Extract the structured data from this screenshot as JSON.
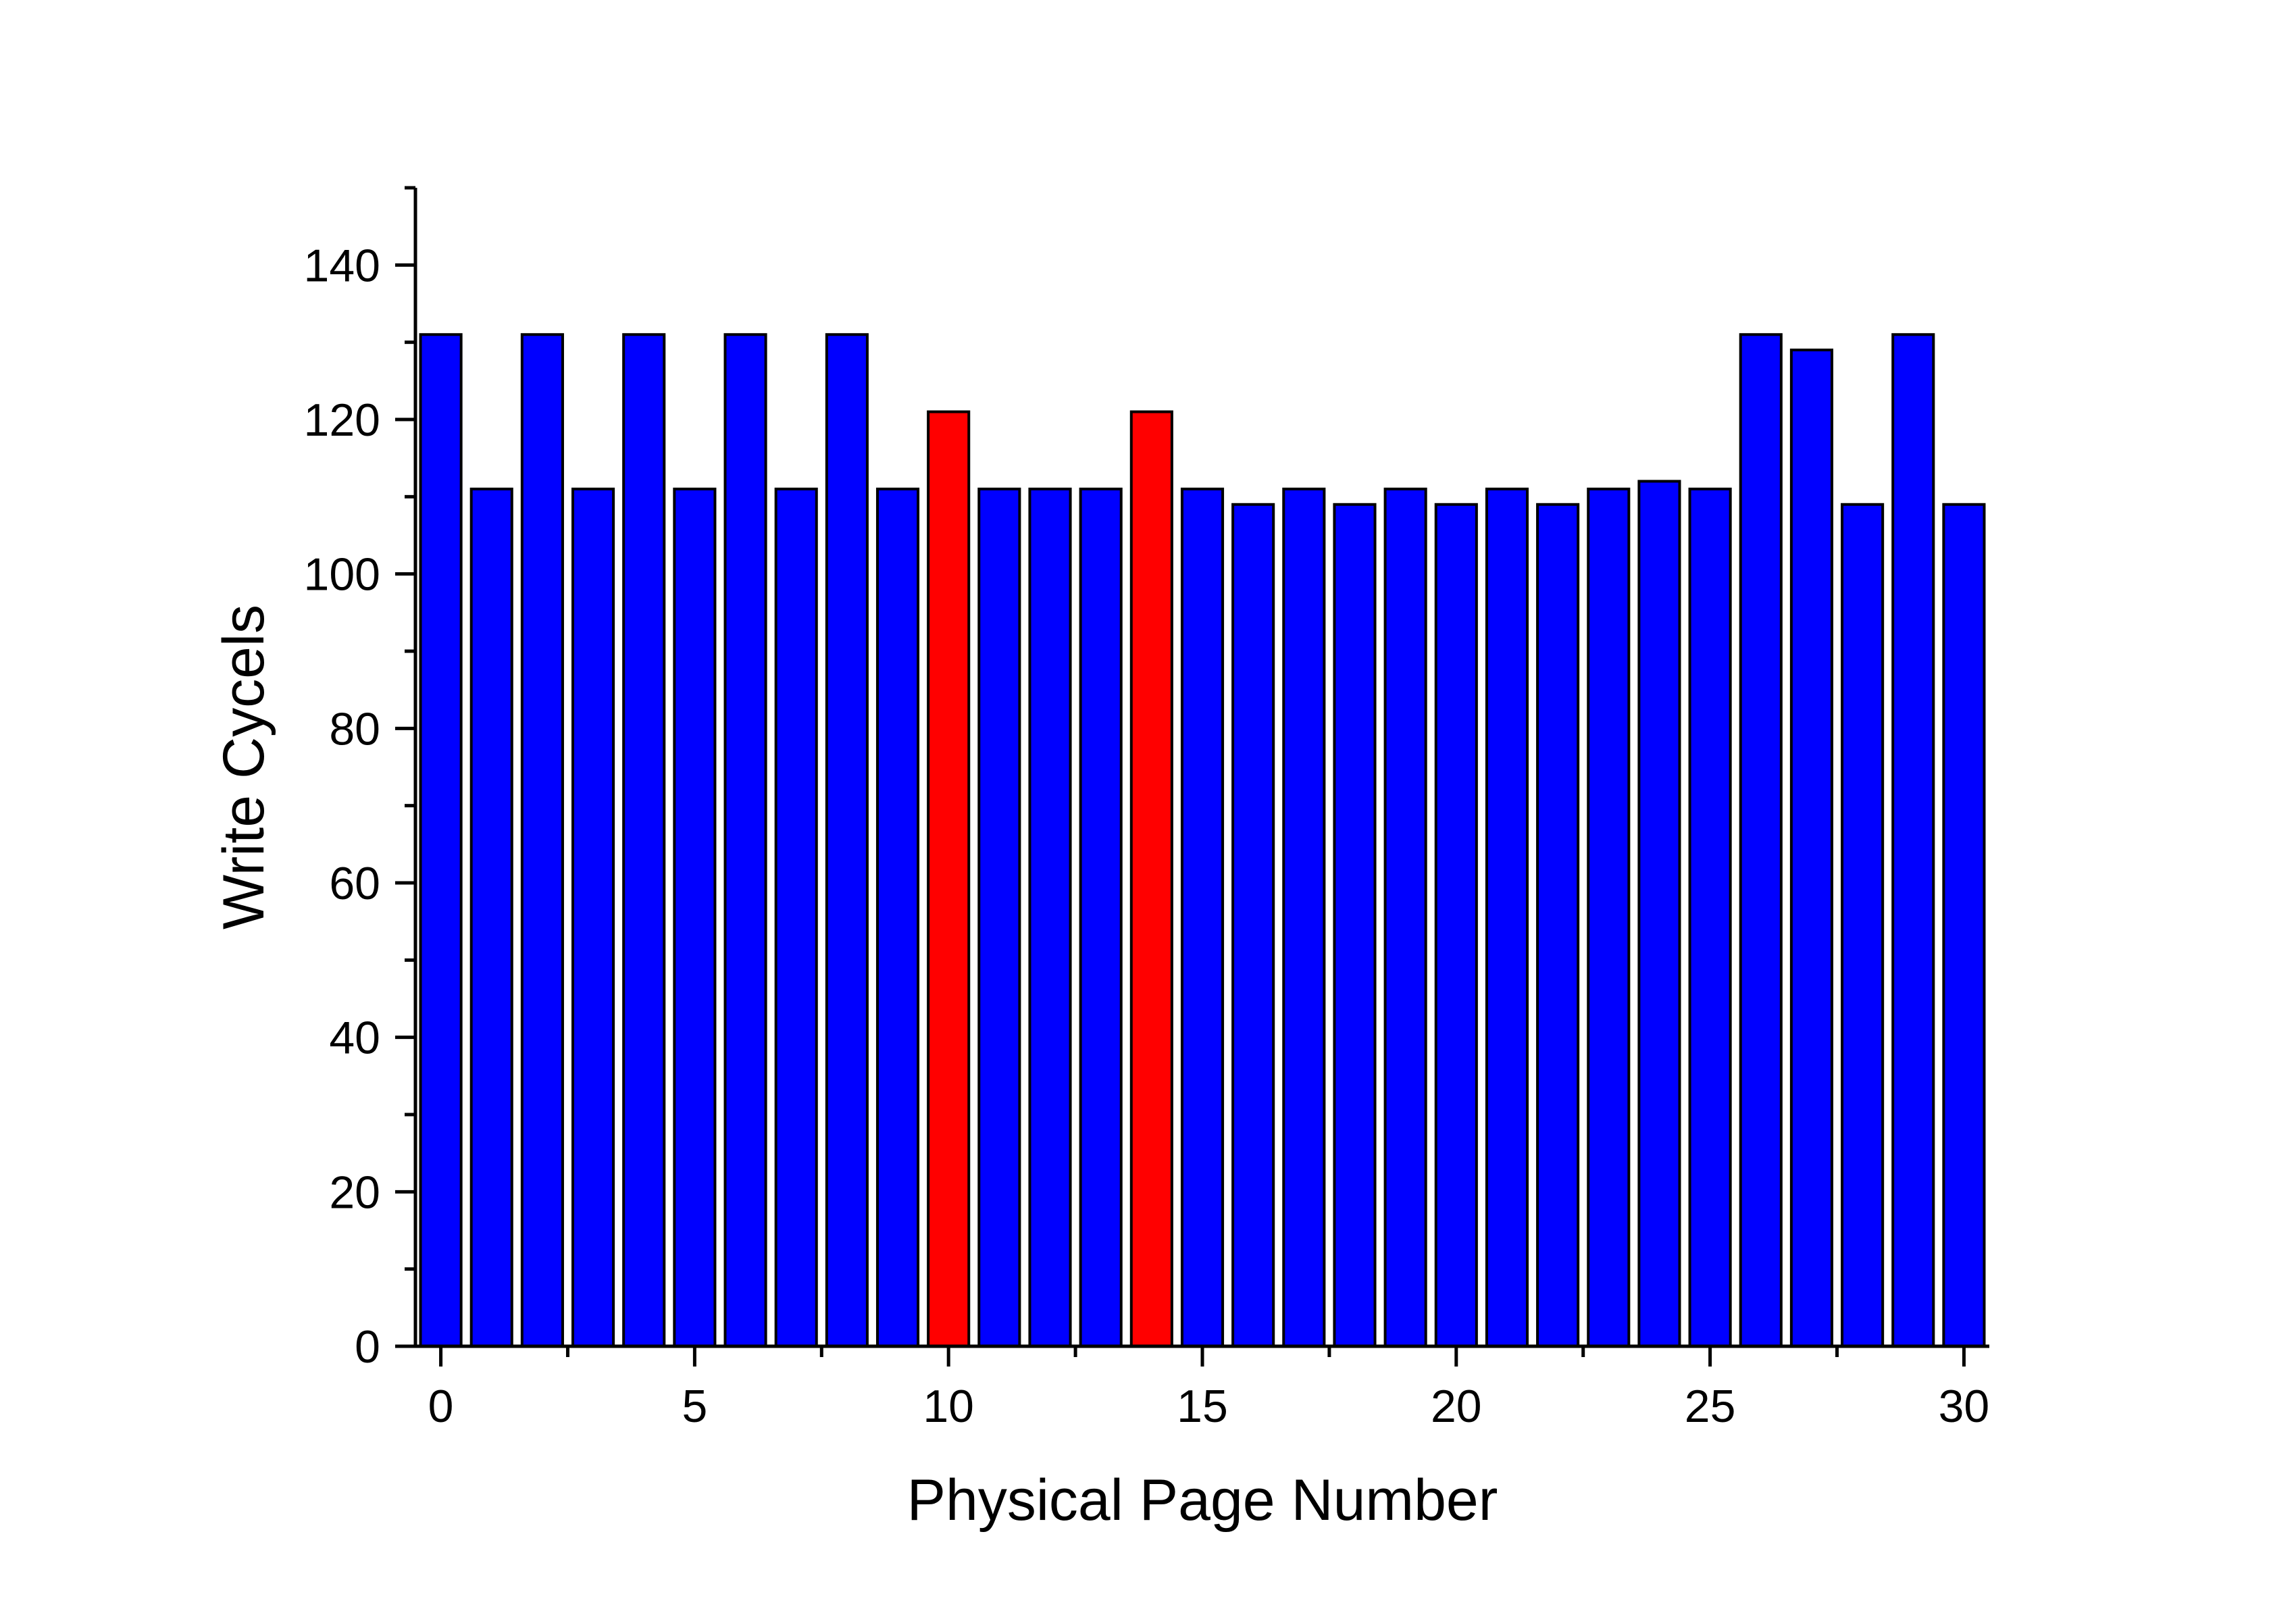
{
  "chart_data": {
    "type": "bar",
    "xlabel": "Physical Page Number",
    "ylabel": "Write Cycels",
    "title": "",
    "xlim": [
      -0.5,
      30.5
    ],
    "ylim": [
      0,
      150
    ],
    "x_ticks": [
      0,
      5,
      10,
      15,
      20,
      25,
      30
    ],
    "y_ticks": [
      0,
      20,
      40,
      60,
      80,
      100,
      120,
      140
    ],
    "grid": false,
    "legend": "none",
    "categories": [
      0,
      1,
      2,
      3,
      4,
      5,
      6,
      7,
      8,
      9,
      10,
      11,
      12,
      13,
      14,
      15,
      16,
      17,
      18,
      19,
      20,
      21,
      22,
      23,
      24,
      25,
      26,
      27,
      28,
      29,
      30
    ],
    "values": [
      131,
      111,
      131,
      111,
      131,
      111,
      131,
      111,
      131,
      111,
      121,
      111,
      111,
      111,
      121,
      111,
      109,
      111,
      109,
      111,
      109,
      111,
      109,
      111,
      112,
      111,
      131,
      129,
      109,
      131,
      109
    ],
    "colors": {
      "default": "#0000ff",
      "highlight": "#ff0000",
      "highlight_pages": [
        10,
        14
      ],
      "bar_outline": "#000000"
    }
  }
}
